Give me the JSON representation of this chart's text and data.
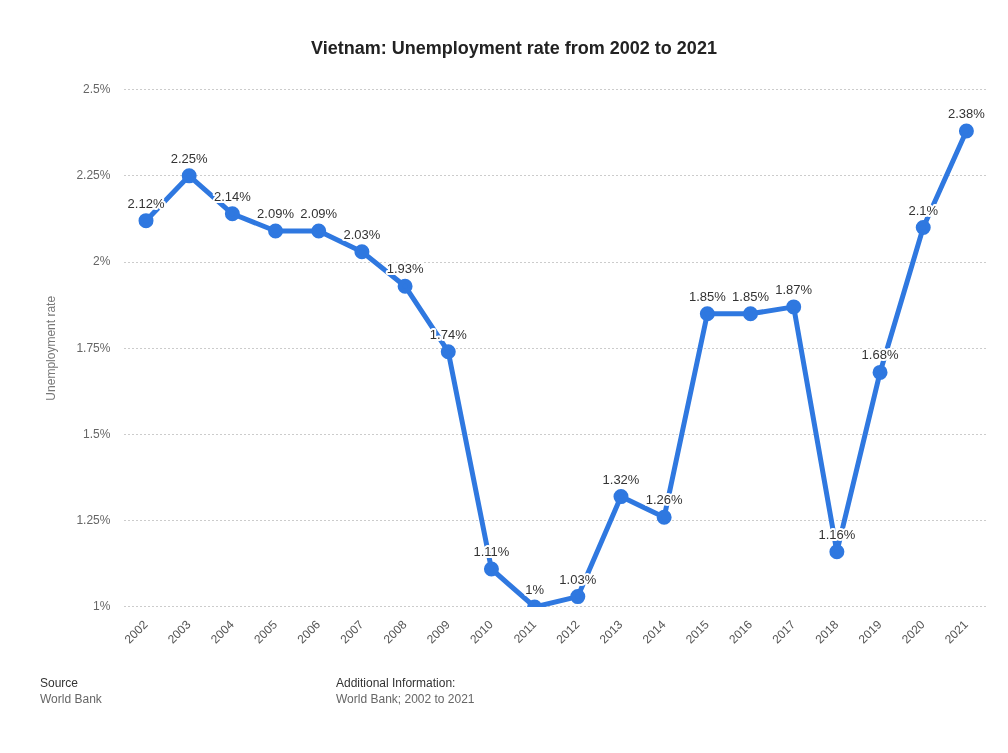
{
  "chart_data": {
    "type": "line",
    "title": "Vietnam: Unemployment rate from 2002 to 2021",
    "ylabel": "Unemployment rate",
    "categories": [
      "2002",
      "2003",
      "2004",
      "2005",
      "2006",
      "2007",
      "2008",
      "2009",
      "2010",
      "2011",
      "2012",
      "2013",
      "2014",
      "2015",
      "2016",
      "2017",
      "2018",
      "2019",
      "2020",
      "2021"
    ],
    "series": [
      {
        "color": "#2f78e0",
        "values": [
          2.12,
          2.25,
          2.14,
          2.09,
          2.09,
          2.03,
          1.93,
          1.74,
          1.11,
          1,
          1.03,
          1.32,
          1.26,
          1.85,
          1.85,
          1.87,
          1.16,
          1.68,
          2.1,
          2.38
        ],
        "value_labels": [
          "2.12%",
          "2.25%",
          "2.14%",
          "2.09%",
          "2.09%",
          "2.03%",
          "1.93%",
          "1.74%",
          "1.11%",
          "1%",
          "1.03%",
          "1.32%",
          "1.26%",
          "1.85%",
          "1.85%",
          "1.87%",
          "1.16%",
          "1.68%",
          "2.1%",
          "2.38%"
        ]
      }
    ],
    "ylim": [
      1,
      2.5
    ],
    "yticks": [
      {
        "value": 1,
        "label": "1%"
      },
      {
        "value": 1.25,
        "label": "1.25%"
      },
      {
        "value": 1.5,
        "label": "1.5%"
      },
      {
        "value": 1.75,
        "label": "1.75%"
      },
      {
        "value": 2,
        "label": "2%"
      },
      {
        "value": 2.25,
        "label": "2.25%"
      },
      {
        "value": 2.5,
        "label": "2.5%"
      }
    ],
    "grid": "y",
    "marker": "circle",
    "line_style": "solid",
    "legend": false,
    "annotations": [
      "Source",
      "World Bank",
      "Additional Information:",
      "World Bank; 2002 to 2021"
    ]
  }
}
